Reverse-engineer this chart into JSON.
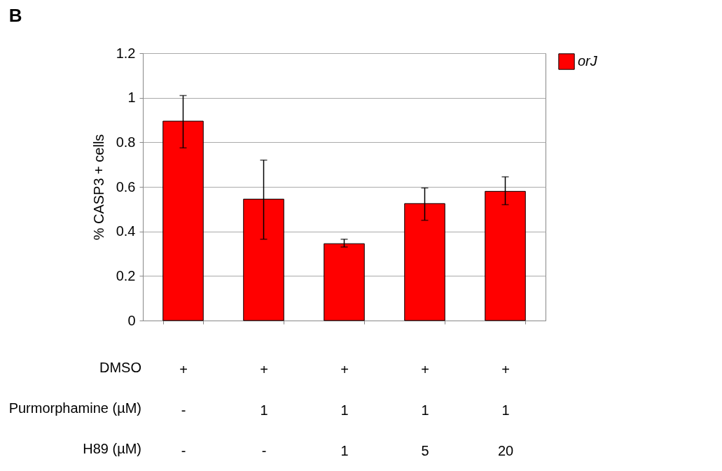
{
  "chart_data": {
    "type": "bar",
    "title": "B",
    "ylabel": "% CASP3 + cells",
    "categories": [
      "+\n-\n-",
      "+\n1\n-",
      "+\n1\n1",
      "+\n1\n5",
      "+\n1\n20"
    ],
    "series": [
      {
        "name": "orJ",
        "color": "#ff0000",
        "values": [
          0.895,
          0.545,
          0.345,
          0.525,
          0.58
        ],
        "errors": [
          [
            0.775,
            1.01
          ],
          [
            0.365,
            0.72
          ],
          [
            0.33,
            0.365
          ],
          [
            0.45,
            0.595
          ],
          [
            0.52,
            0.645
          ]
        ]
      }
    ],
    "ylim": [
      0,
      1.2
    ],
    "yticks": [
      0,
      0.2,
      0.4,
      0.6,
      0.8,
      1,
      1.2
    ],
    "grid": "y",
    "legend": "right",
    "annotations": [
      "DMSO",
      "Purmorphamine (µM)",
      "H89 (µM)"
    ]
  }
}
